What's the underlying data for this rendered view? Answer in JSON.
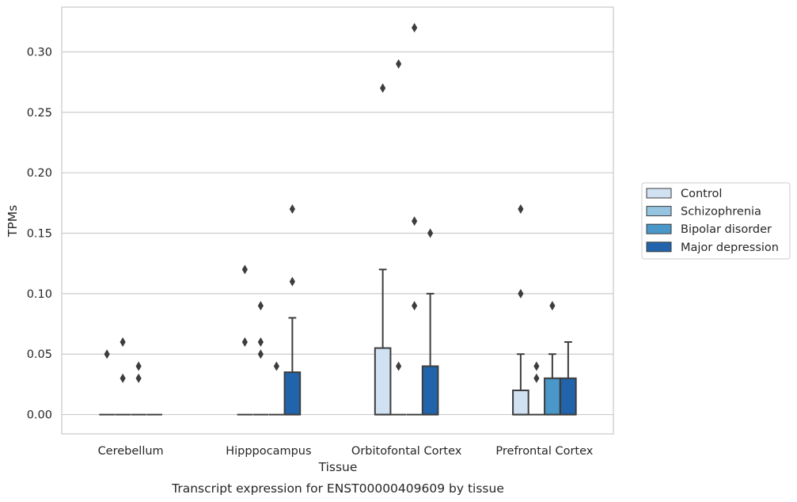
{
  "chart_data": {
    "type": "box",
    "title": "",
    "caption": "Transcript expression for ENST00000409609 by tissue",
    "xlabel": "Tissue",
    "ylabel": "TPMs",
    "ylim": [
      -0.016,
      0.337
    ],
    "yticks": [
      0.0,
      0.05,
      0.1,
      0.15,
      0.2,
      0.25,
      0.3
    ],
    "ytick_labels": [
      "0.00",
      "0.05",
      "0.10",
      "0.15",
      "0.20",
      "0.25",
      "0.30"
    ],
    "grid": "horizontal",
    "legend_position": "right",
    "categories": [
      "Cerebellum",
      "Hipppocampus",
      "Orbitofontal Cortex",
      "Prefrontal Cortex"
    ],
    "series": [
      {
        "name": "Control",
        "color": "#d0e1f2",
        "boxes": [
          {
            "q1": 0,
            "median": 0,
            "q3": 0,
            "whisker_low": 0,
            "whisker_high": 0,
            "outliers": [
              0.05
            ]
          },
          {
            "q1": 0,
            "median": 0,
            "q3": 0,
            "whisker_low": 0,
            "whisker_high": 0,
            "outliers": [
              0.06,
              0.12
            ]
          },
          {
            "q1": 0,
            "median": 0,
            "q3": 0.055,
            "whisker_low": 0,
            "whisker_high": 0.12,
            "outliers": [
              0.27
            ]
          },
          {
            "q1": 0,
            "median": 0,
            "q3": 0.02,
            "whisker_low": 0,
            "whisker_high": 0.05,
            "outliers": [
              0.1,
              0.17
            ]
          }
        ]
      },
      {
        "name": "Schizophrenia",
        "color": "#94c4df",
        "boxes": [
          {
            "q1": 0,
            "median": 0,
            "q3": 0,
            "whisker_low": 0,
            "whisker_high": 0,
            "outliers": [
              0.03,
              0.06
            ]
          },
          {
            "q1": 0,
            "median": 0,
            "q3": 0,
            "whisker_low": 0,
            "whisker_high": 0,
            "outliers": [
              0.05,
              0.06,
              0.09
            ]
          },
          {
            "q1": 0,
            "median": 0,
            "q3": 0,
            "whisker_low": 0,
            "whisker_high": 0,
            "outliers": [
              0.04,
              0.29
            ]
          },
          {
            "q1": 0,
            "median": 0,
            "q3": 0,
            "whisker_low": 0,
            "whisker_high": 0,
            "outliers": [
              0.03,
              0.04
            ]
          }
        ]
      },
      {
        "name": "Bipolar disorder",
        "color": "#4a98c9",
        "boxes": [
          {
            "q1": 0,
            "median": 0,
            "q3": 0,
            "whisker_low": 0,
            "whisker_high": 0,
            "outliers": [
              0.03,
              0.04
            ]
          },
          {
            "q1": 0,
            "median": 0,
            "q3": 0,
            "whisker_low": 0,
            "whisker_high": 0,
            "outliers": [
              0.04
            ]
          },
          {
            "q1": 0,
            "median": 0,
            "q3": 0,
            "whisker_low": 0,
            "whisker_high": 0,
            "outliers": [
              0.09,
              0.16,
              0.32
            ]
          },
          {
            "q1": 0,
            "median": 0,
            "q3": 0.03,
            "whisker_low": 0,
            "whisker_high": 0.05,
            "outliers": [
              0.09
            ]
          }
        ]
      },
      {
        "name": "Major depression",
        "color": "#2164ab",
        "boxes": [
          {
            "q1": 0,
            "median": 0,
            "q3": 0,
            "whisker_low": 0,
            "whisker_high": 0,
            "outliers": []
          },
          {
            "q1": 0,
            "median": 0,
            "q3": 0.035,
            "whisker_low": 0,
            "whisker_high": 0.08,
            "outliers": [
              0.11,
              0.17
            ]
          },
          {
            "q1": 0,
            "median": 0,
            "q3": 0.04,
            "whisker_low": 0,
            "whisker_high": 0.1,
            "outliers": [
              0.15
            ]
          },
          {
            "q1": 0,
            "median": 0,
            "q3": 0.03,
            "whisker_low": 0,
            "whisker_high": 0.06,
            "outliers": []
          }
        ]
      }
    ]
  }
}
